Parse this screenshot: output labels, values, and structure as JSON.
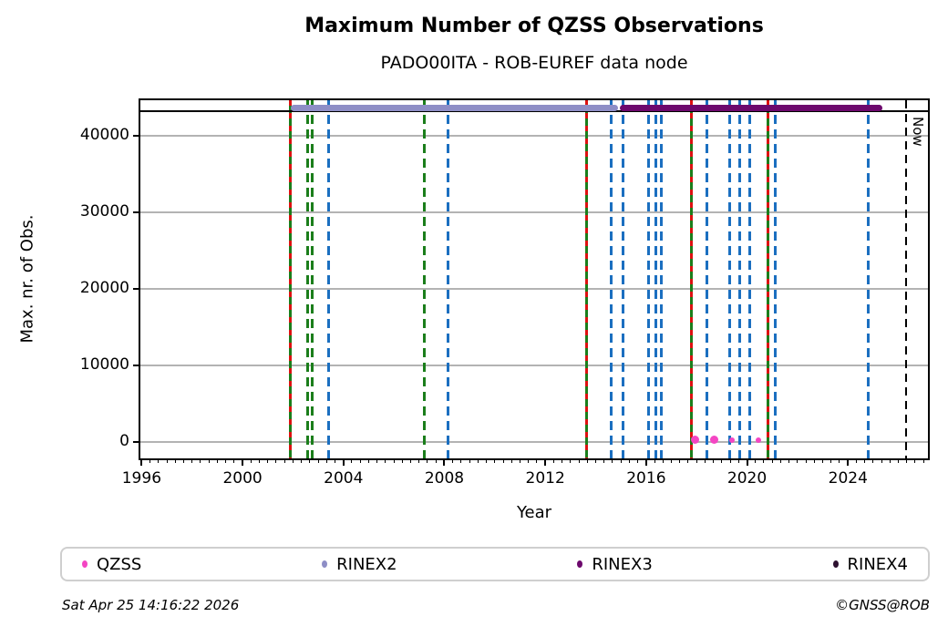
{
  "header": {
    "title": "Maximum Number of QZSS Observations",
    "subtitle": "PADO00ITA - ROB-EUREF data node"
  },
  "footer": {
    "timestamp": "Sat Apr 25 14:16:22 2026",
    "credit": "©GNSS@ROB"
  },
  "legend": {
    "items": [
      {
        "label": "QZSS",
        "color": "#f445c3"
      },
      {
        "label": "RINEX2",
        "color": "#8e8ec6"
      },
      {
        "label": "RINEX3",
        "color": "#6d096d"
      },
      {
        "label": "RINEX4",
        "color": "#2d1130"
      }
    ]
  },
  "chart_data": {
    "type": "scatter",
    "title": "Maximum Number of QZSS Observations",
    "subtitle": "PADO00ITA - ROB-EUREF data node",
    "xlabel": "Year",
    "ylabel": "Max. nr. of Obs.",
    "xlim": [
      1995.95,
      2027.17
    ],
    "ylim": [
      -2150,
      44650
    ],
    "xticks_major": [
      1996,
      2000,
      2004,
      2008,
      2012,
      2016,
      2020,
      2024
    ],
    "xtick_minor_step": 0.3333,
    "yticks": [
      0,
      10000,
      20000,
      30000,
      40000
    ],
    "grid": "horizontal-only",
    "legend_position": "bottom",
    "reference_line_y": 43200,
    "file_period_bars": [
      {
        "name": "RINEX2",
        "start": 2001.9,
        "end": 2014.9,
        "y": 43650,
        "color": "#8e8ec6"
      },
      {
        "name": "RINEX3",
        "start": 2014.95,
        "end": 2025.35,
        "y": 43650,
        "color": "#6d096d"
      }
    ],
    "event_lines": {
      "green_solid_with_red_dashes": [
        2001.88,
        2013.65,
        2017.8,
        2020.84
      ],
      "green_dashed": [
        2002.57,
        2002.75,
        2007.2
      ],
      "blue_dashed": [
        2003.4,
        2008.15,
        2014.6,
        2015.1,
        2016.1,
        2016.4,
        2016.6,
        2018.4,
        2019.3,
        2019.7,
        2020.1,
        2021.1,
        2024.8
      ]
    },
    "now_marker": {
      "x": 2026.31,
      "label": "Now",
      "style": "black-dashed"
    },
    "qzss_points": [
      {
        "x": 2017.93,
        "y": 250,
        "size": 9
      },
      {
        "x": 2018.69,
        "y": 280,
        "size": 9
      },
      {
        "x": 2019.41,
        "y": 270,
        "size": 6
      },
      {
        "x": 2020.46,
        "y": 230,
        "size": 6
      }
    ],
    "colors": {
      "qzss": "#f445c3",
      "rinex2": "#8e8ec6",
      "rinex3": "#6d096d",
      "rinex4": "#2d1130",
      "green_line": "#1b7e1b",
      "red_line": "#dd1111",
      "blue_line": "#1b6fc0",
      "grid": "#b3b3b3",
      "reference": "#000000"
    }
  }
}
